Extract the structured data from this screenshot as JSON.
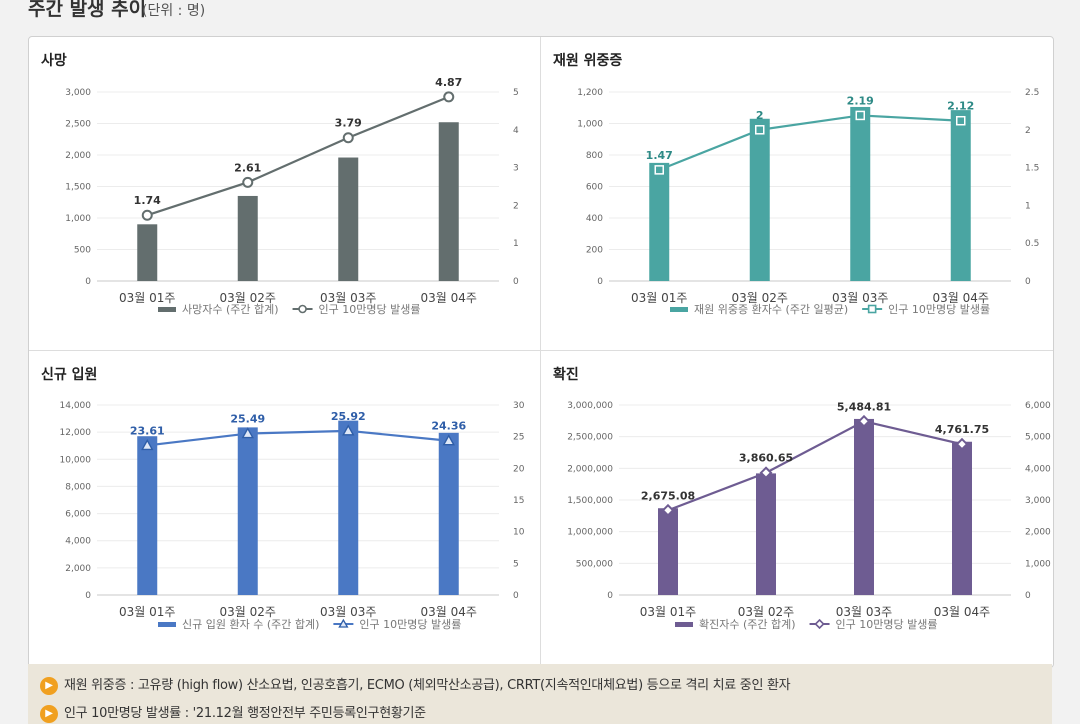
{
  "page": {
    "title": "주간 발생 추이",
    "unit": "(단위 : 명)"
  },
  "notes": [
    "재원 위중증 : 고유량 (high flow) 산소요법, 인공호흡기, ECMO (체외막산소공급), CRRT(지속적인대체요법) 등으로 격리 치료 중인 환자",
    "인구 10만명당 발생률 : '21.12월 행정안전부 주민등록인구현황기준"
  ],
  "chart_data": [
    {
      "type": "bar",
      "title": "사망",
      "categories": [
        "03월 01주",
        "03월 02주",
        "03월 03주",
        "03월 04주"
      ],
      "series": [
        {
          "name": "사망자수 (주간 합계)",
          "axis": "left",
          "kind": "bar",
          "values": [
            900,
            1350,
            1960,
            2520
          ]
        },
        {
          "name": "인구 10만명당 발생률",
          "axis": "right",
          "kind": "line",
          "values": [
            1.74,
            2.61,
            3.79,
            4.87
          ],
          "labels": [
            "1.74",
            "2.61",
            "3.79",
            "4.87"
          ],
          "marker": "circle"
        }
      ],
      "yticks_left": [
        "0",
        "500",
        "1,000",
        "1,500",
        "2,000",
        "2,500",
        "3,000"
      ],
      "ylim_left": [
        0,
        3000
      ],
      "yticks_right": [
        "0",
        "1",
        "2",
        "3",
        "4",
        "5"
      ],
      "ylim_right": [
        0,
        5
      ],
      "colors": {
        "bar": "#636e6e",
        "line": "#636e6e",
        "label": "#333333"
      }
    },
    {
      "type": "bar",
      "title": "재원 위중증",
      "categories": [
        "03월 01주",
        "03월 02주",
        "03월 03주",
        "03월 04주"
      ],
      "series": [
        {
          "name": "재원 위중증 환자수 (주간 일평균)",
          "axis": "left",
          "kind": "bar",
          "values": [
            750,
            1030,
            1105,
            1085
          ]
        },
        {
          "name": "인구 10만명당 발생률",
          "axis": "right",
          "kind": "line",
          "values": [
            1.47,
            2.0,
            2.19,
            2.12
          ],
          "labels": [
            "1.47",
            "2",
            "2.19",
            "2.12"
          ],
          "marker": "square"
        }
      ],
      "yticks_left": [
        "0",
        "200",
        "400",
        "600",
        "800",
        "1,000",
        "1,200"
      ],
      "ylim_left": [
        0,
        1200
      ],
      "yticks_right": [
        "0",
        "0.5",
        "1",
        "1.5",
        "2",
        "2.5"
      ],
      "ylim_right": [
        0,
        2.5
      ],
      "colors": {
        "bar": "#4aa5a2",
        "line": "#4aa5a2",
        "label": "#2e8a86"
      }
    },
    {
      "type": "bar",
      "title": "신규 입원",
      "categories": [
        "03월 01주",
        "03월 02주",
        "03월 03주",
        "03월 04주"
      ],
      "series": [
        {
          "name": "신규 입원 환자 수 (주간 합계)",
          "axis": "left",
          "kind": "bar",
          "values": [
            11700,
            12350,
            12850,
            11950
          ]
        },
        {
          "name": "인구 10만명당 발생률",
          "axis": "right",
          "kind": "line",
          "values": [
            23.61,
            25.49,
            25.92,
            24.36
          ],
          "labels": [
            "23.61",
            "25.49",
            "25.92",
            "24.36"
          ],
          "marker": "triangle"
        }
      ],
      "yticks_left": [
        "0",
        "2,000",
        "4,000",
        "6,000",
        "8,000",
        "10,000",
        "12,000",
        "14,000"
      ],
      "ylim_left": [
        0,
        14000
      ],
      "yticks_right": [
        "0",
        "5",
        "10",
        "15",
        "20",
        "25",
        "30"
      ],
      "ylim_right": [
        0,
        30
      ],
      "colors": {
        "bar": "#4a78c4",
        "line": "#4a78c4",
        "label": "#2f5ea8"
      }
    },
    {
      "type": "bar",
      "title": "확진",
      "categories": [
        "03월 01주",
        "03월 02주",
        "03월 03주",
        "03월 04주"
      ],
      "series": [
        {
          "name": "확진자수 (주간 합계)",
          "axis": "left",
          "kind": "bar",
          "values": [
            1370000,
            1920000,
            2780000,
            2420000
          ]
        },
        {
          "name": "인구 10만명당 발생률",
          "axis": "right",
          "kind": "line",
          "values": [
            2675.08,
            3860.65,
            5484.81,
            4761.75
          ],
          "labels": [
            "2,675.08",
            "3,860.65",
            "5,484.81",
            "4,761.75"
          ],
          "marker": "diamond"
        }
      ],
      "yticks_left": [
        "0",
        "500,000",
        "1,000,000",
        "1,500,000",
        "2,000,000",
        "2,500,000",
        "3,000,000"
      ],
      "ylim_left": [
        0,
        3000000
      ],
      "yticks_right": [
        "0",
        "1,000",
        "2,000",
        "3,000",
        "4,000",
        "5,000",
        "6,000"
      ],
      "ylim_right": [
        0,
        6000
      ],
      "colors": {
        "bar": "#6e5c92",
        "line": "#6e5c92",
        "label": "#333333"
      }
    }
  ]
}
